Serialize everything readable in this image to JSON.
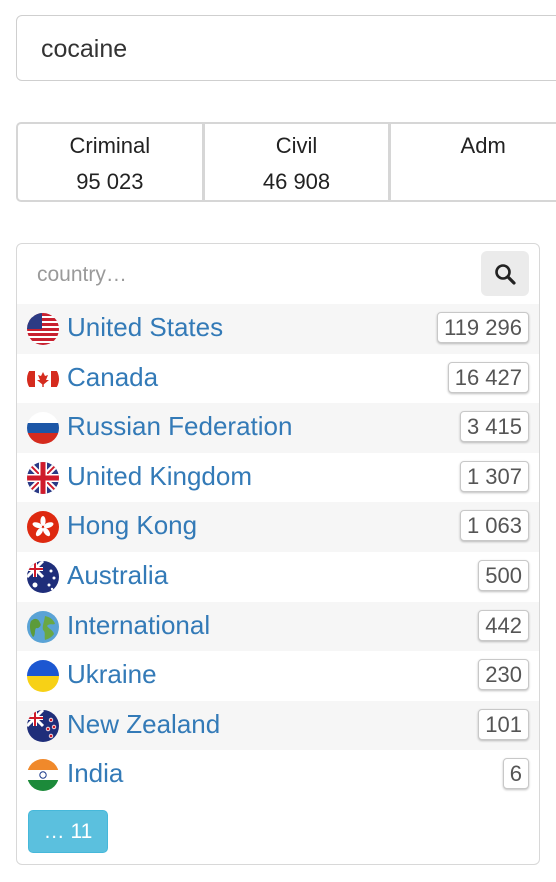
{
  "search": {
    "value": "cocaine"
  },
  "stats": [
    {
      "label": "Criminal",
      "value": "95 023"
    },
    {
      "label": "Civil",
      "value": "46 908"
    },
    {
      "label": "Adm",
      "value": ""
    }
  ],
  "filter": {
    "placeholder": "country…"
  },
  "countries": [
    {
      "name": "United States",
      "count": "119 296",
      "icon": "us-flag-icon"
    },
    {
      "name": "Canada",
      "count": "16 427",
      "icon": "canada-flag-icon"
    },
    {
      "name": "Russian Federation",
      "count": "3 415",
      "icon": "russia-flag-icon"
    },
    {
      "name": "United Kingdom",
      "count": "1 307",
      "icon": "uk-flag-icon"
    },
    {
      "name": "Hong Kong",
      "count": "1 063",
      "icon": "hong-kong-flag-icon"
    },
    {
      "name": "Australia",
      "count": "500",
      "icon": "australia-flag-icon"
    },
    {
      "name": "International",
      "count": "442",
      "icon": "globe-icon"
    },
    {
      "name": "Ukraine",
      "count": "230",
      "icon": "ukraine-flag-icon"
    },
    {
      "name": "New Zealand",
      "count": "101",
      "icon": "new-zealand-flag-icon"
    },
    {
      "name": "India",
      "count": "6",
      "icon": "india-flag-icon"
    }
  ],
  "more_button": {
    "label": "… 11"
  },
  "colors": {
    "link": "#337ab7",
    "more_button": "#5bc0de",
    "row_stripe": "#f6f6f6"
  }
}
